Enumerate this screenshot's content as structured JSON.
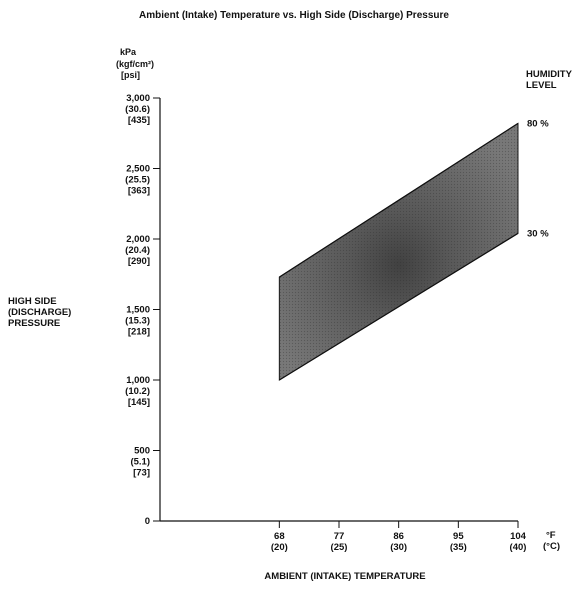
{
  "chart_data": {
    "type": "area",
    "title": "Ambient (Intake) Temperature vs. High Side (Discharge) Pressure",
    "xlabel": "AMBIENT (INTAKE) TEMPERATURE",
    "ylabel": [
      "HIGH SIDE",
      "(DISCHARGE)",
      "PRESSURE"
    ],
    "y_units": [
      "kPa",
      "(kgf/cm²)",
      "[psi]"
    ],
    "x_units": [
      "°F",
      "(°C)"
    ],
    "xlim": [
      50,
      104
    ],
    "ylim": [
      0,
      3000
    ],
    "x_ticks": [
      {
        "value": 68,
        "primary": "68",
        "secondary": "(20)"
      },
      {
        "value": 77,
        "primary": "77",
        "secondary": "(25)"
      },
      {
        "value": 86,
        "primary": "86",
        "secondary": "(30)"
      },
      {
        "value": 95,
        "primary": "95",
        "secondary": "(35)"
      },
      {
        "value": 104,
        "primary": "104",
        "secondary": "(40)"
      }
    ],
    "y_ticks": [
      {
        "value": 0,
        "lines": [
          "0"
        ]
      },
      {
        "value": 500,
        "lines": [
          "500",
          "(5.1)",
          "[73]"
        ]
      },
      {
        "value": 1000,
        "lines": [
          "1,000",
          "(10.2)",
          "[145]"
        ]
      },
      {
        "value": 1500,
        "lines": [
          "1,500",
          "(15.3)",
          "[218]"
        ]
      },
      {
        "value": 2000,
        "lines": [
          "2,000",
          "(20.4)",
          "[290]"
        ]
      },
      {
        "value": 2500,
        "lines": [
          "2,500",
          "(25.5)",
          "[363]"
        ]
      },
      {
        "value": 3000,
        "lines": [
          "3,000",
          "(30.6)",
          "[435]"
        ]
      }
    ],
    "legend_title": [
      "HUMIDITY",
      "LEVEL"
    ],
    "series": [
      {
        "name": "80 %",
        "x": [
          68,
          104
        ],
        "y": [
          1730,
          2820
        ]
      },
      {
        "name": "30 %",
        "x": [
          68,
          104
        ],
        "y": [
          1000,
          2040
        ]
      }
    ],
    "fill_color": "#6b6b6b",
    "grid": false
  }
}
